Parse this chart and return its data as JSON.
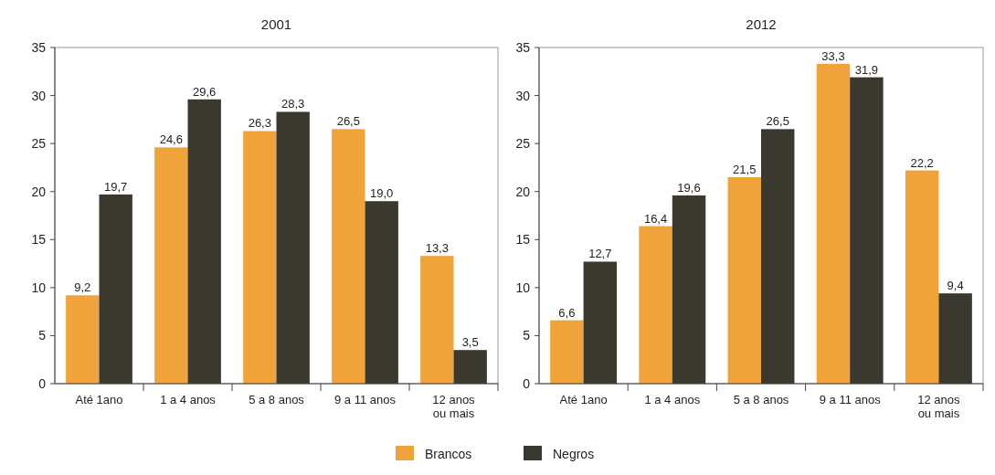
{
  "chart_data": [
    {
      "type": "bar",
      "title": "2001",
      "categories": [
        "Até 1ano",
        "1 a 4 anos",
        "5 a 8 anos",
        "9 a 11 anos",
        "12 anos ou mais"
      ],
      "series": [
        {
          "name": "Brancos",
          "color": "#f0a33b",
          "values": [
            9.2,
            24.6,
            26.3,
            26.5,
            13.3
          ],
          "value_labels": [
            "9,2",
            "24,6",
            "26,3",
            "26,5",
            "13,3"
          ]
        },
        {
          "name": "Negros",
          "color": "#3b392d",
          "values": [
            19.7,
            29.6,
            28.3,
            19.0,
            3.5
          ],
          "value_labels": [
            "19,7",
            "29,6",
            "28,3",
            "19,0",
            "3,5"
          ]
        }
      ],
      "ylim": [
        0,
        35
      ],
      "yticks": [
        0,
        5,
        10,
        15,
        20,
        25,
        30,
        35
      ],
      "grid": false,
      "legend": "bottom"
    },
    {
      "type": "bar",
      "title": "2012",
      "categories": [
        "Até 1ano",
        "1 a 4 anos",
        "5 a 8 anos",
        "9 a 11 anos",
        "12 anos ou mais"
      ],
      "series": [
        {
          "color": "#f0a33b",
          "values": [
            6.6,
            16.4,
            21.5,
            33.3,
            22.2
          ],
          "value_labels": [
            "6,6",
            "16,4",
            "21,5",
            "33,3",
            "22,2"
          ]
        },
        {
          "color": "#3b392d",
          "values": [
            12.7,
            19.6,
            26.5,
            31.9,
            9.4
          ],
          "value_labels": [
            "12,7",
            "19,6",
            "26,5",
            "31,9",
            "9,4"
          ]
        }
      ],
      "ylim": [
        0,
        35
      ],
      "yticks": [
        0,
        5,
        10,
        15,
        20,
        25,
        30,
        35
      ],
      "grid": false
    }
  ]
}
